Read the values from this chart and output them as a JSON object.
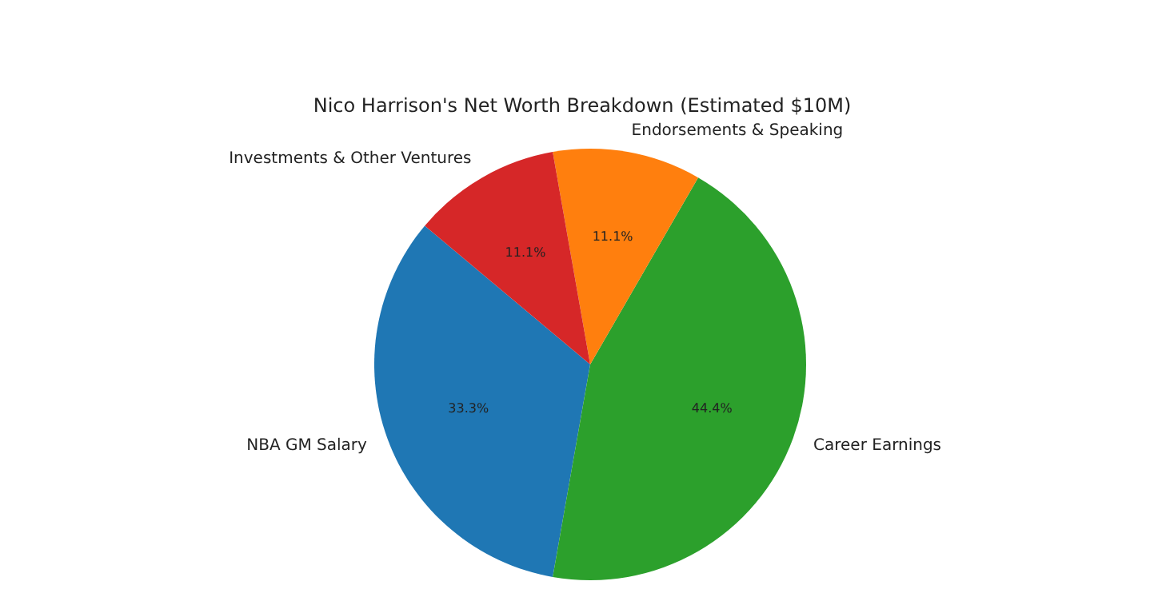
{
  "chart_data": {
    "type": "pie",
    "title": "Nico Harrison's Net Worth Breakdown (Estimated $10M)",
    "categories": [
      "NBA GM Salary",
      "Career Earnings",
      "Endorsements & Speaking",
      "Investments & Other Ventures"
    ],
    "values": [
      33.3,
      44.4,
      11.1,
      11.1
    ],
    "colors": [
      "#1f77b4",
      "#2ca02c",
      "#ff7f0e",
      "#d62728"
    ],
    "value_labels": [
      "33.3%",
      "44.4%",
      "11.1%",
      "11.1%"
    ],
    "legend": false
  }
}
